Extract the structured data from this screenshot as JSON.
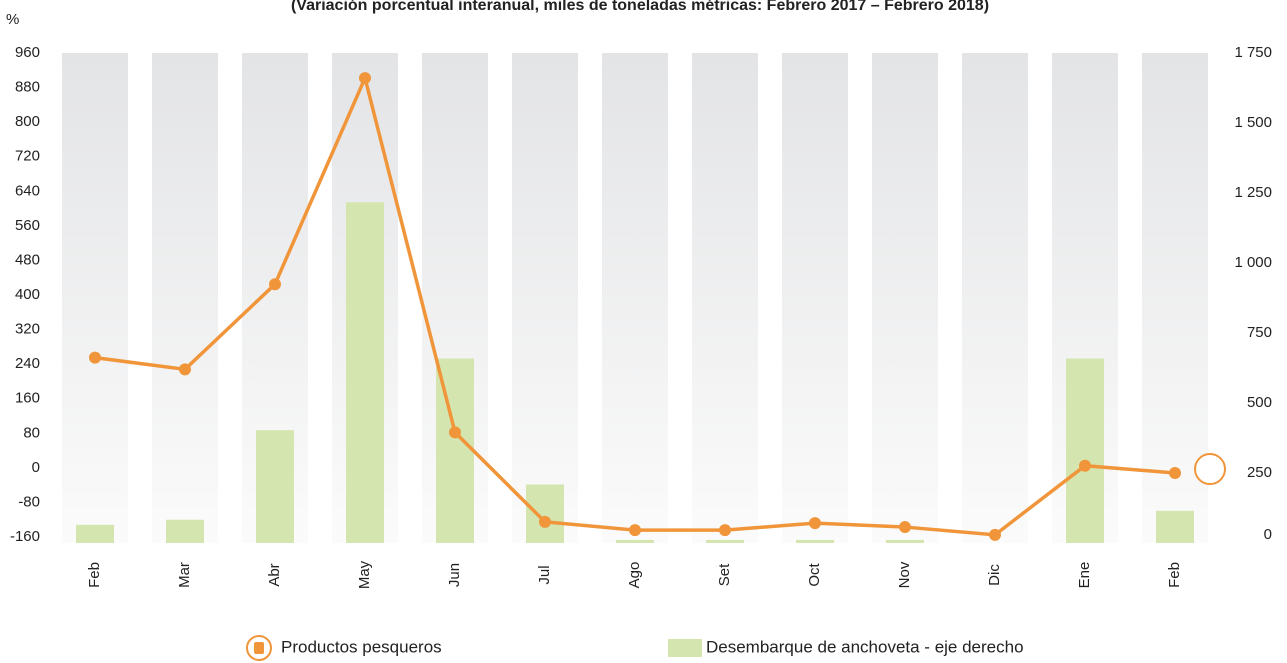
{
  "chart_data": {
    "type": "combo",
    "subtitle": "(Variación porcentual interanual, miles de toneladas métricas: Febrero 2017 – Febrero 2018)",
    "y_label": "%",
    "categories": [
      "Feb",
      "Mar",
      "Abr",
      "May",
      "Jun",
      "Jul",
      "Ago",
      "Set",
      "Oct",
      "Nov",
      "Dic",
      "Ene",
      "Feb"
    ],
    "series": [
      {
        "name": "Productos pesqueros",
        "type": "line",
        "axis": "y",
        "color": "#f0953a",
        "values": [
          255,
          228,
          425,
          902,
          82,
          -125,
          -144,
          -144,
          -128,
          -137,
          -155,
          5,
          -12
        ]
      },
      {
        "name": "Desembarque de anchoveta - eje derecho",
        "type": "bar",
        "axis": "y2",
        "color": "#d5e5b0",
        "values": [
          65,
          83,
          403,
          1217,
          659,
          209,
          11,
          11,
          11,
          11,
          0,
          659,
          115
        ]
      }
    ],
    "ylim": [
      -160,
      960
    ],
    "yticks": [
      -160,
      -80,
      0,
      80,
      160,
      240,
      320,
      400,
      480,
      560,
      640,
      720,
      800,
      880,
      960
    ],
    "y2lim": [
      0,
      1750
    ],
    "y2ticks": [
      0,
      250,
      500,
      750,
      {
        "value": 1000,
        "label": "1 000"
      },
      {
        "value": 1250,
        "label": "1 250"
      },
      {
        "value": 1500,
        "label": "1 500"
      },
      {
        "value": 1750,
        "label": "1 750"
      }
    ]
  }
}
